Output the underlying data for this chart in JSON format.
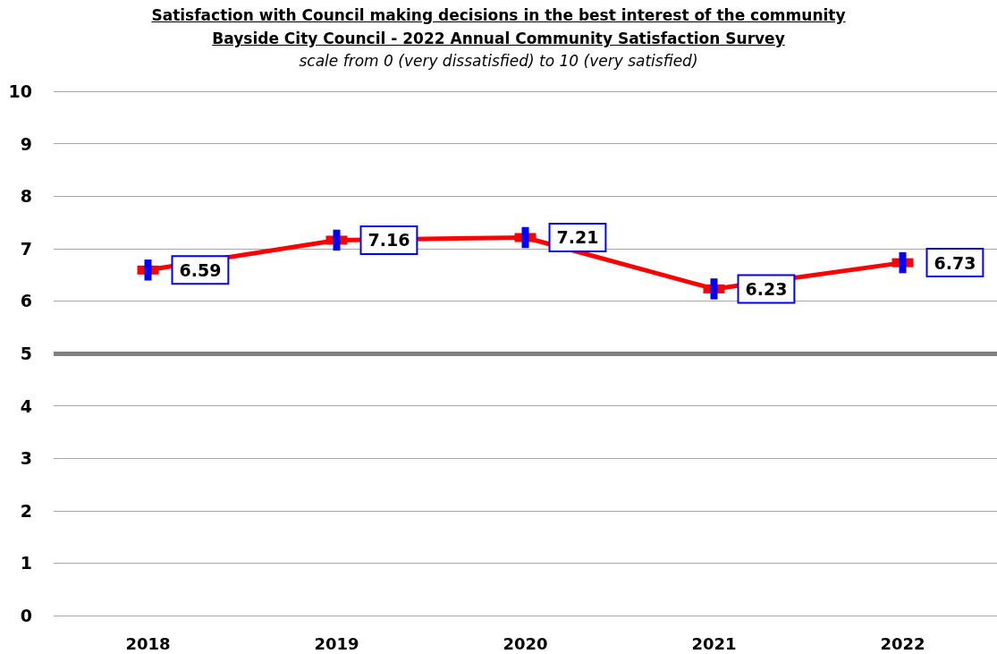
{
  "chart_data": {
    "type": "line",
    "title": "Satisfaction with Council making decisions in the best interest of the community\nBayside City Council -  2022 Annual Community Satisfaction Survey",
    "subtitle": "scale from 0 (very dissatisfied) to 10 (very satisfied)",
    "categories": [
      "2018",
      "2019",
      "2020",
      "2021",
      "2022"
    ],
    "series": [
      {
        "color": "#ff0000",
        "values": [
          6.59,
          7.16,
          7.21,
          6.23,
          6.73
        ],
        "errors": [
          0.2,
          0.2,
          0.2,
          0.2,
          0.2
        ]
      }
    ],
    "ylim": [
      0,
      10
    ],
    "yticks": [
      0,
      1,
      2,
      3,
      4,
      5,
      6,
      7,
      8,
      9,
      10
    ],
    "ref_lines": [
      {
        "axis": "y",
        "value": 5,
        "color": "#808080"
      }
    ],
    "grid": "y",
    "data_labels": true,
    "marker": "square",
    "line_style": "solid"
  }
}
